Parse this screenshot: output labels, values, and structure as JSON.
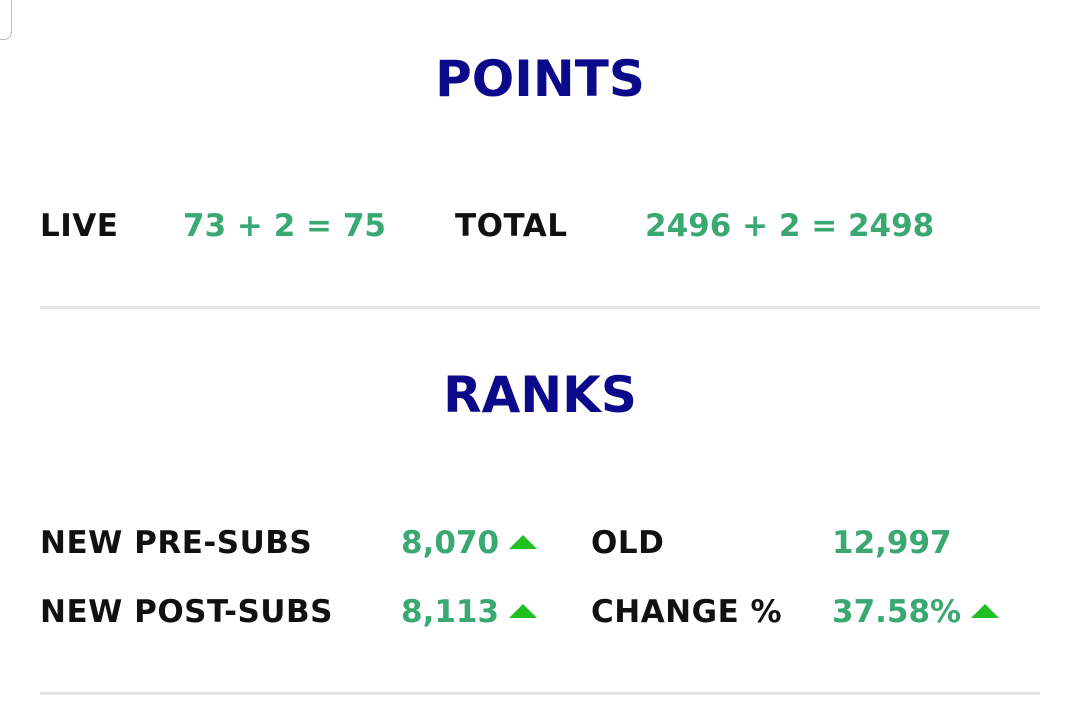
{
  "points": {
    "title": "POINTS",
    "live_label": "LIVE",
    "live_value": "73 + 2 = 75",
    "total_label": "TOTAL",
    "total_value": "2496 + 2 = 2498"
  },
  "ranks": {
    "title": "RANKS",
    "rows": [
      [
        "NEW PRE-SUBS",
        "8,070",
        "OLD",
        "12,997"
      ],
      [
        "NEW POST-SUBS",
        "8,113",
        "CHANGE %",
        "37.58%"
      ]
    ]
  }
}
